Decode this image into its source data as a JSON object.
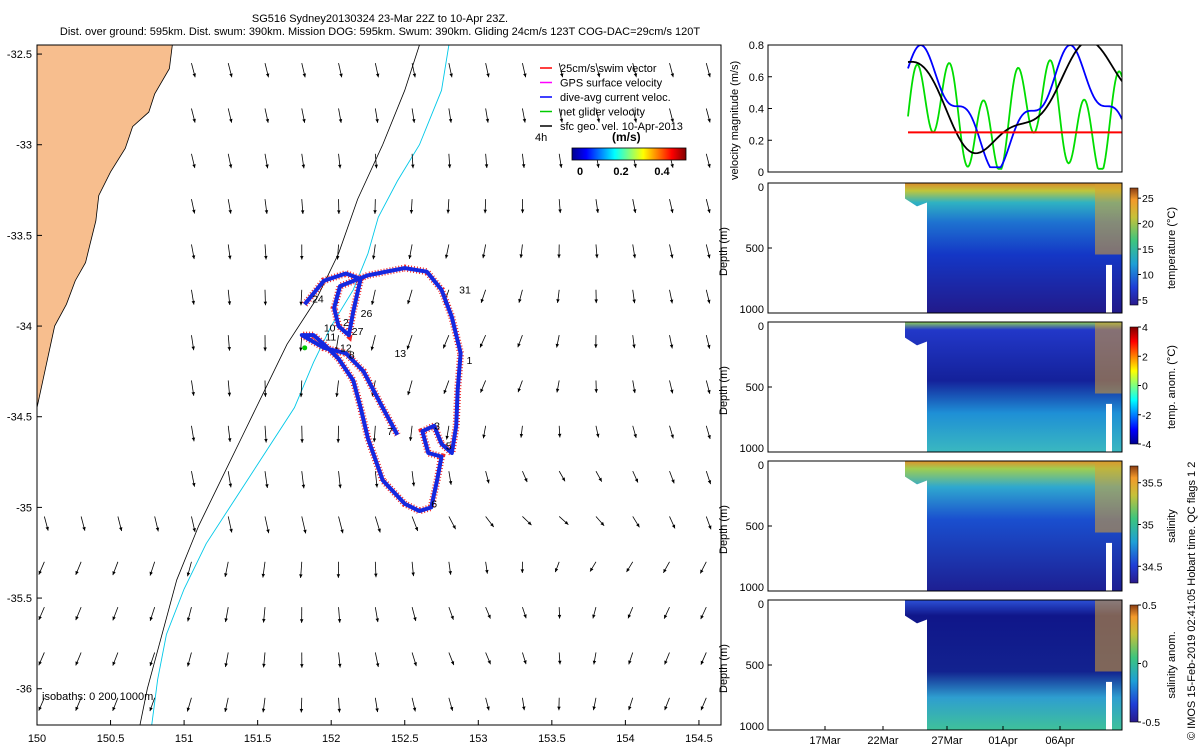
{
  "header": {
    "line1": "SG516 Sydney20130324 23-Mar 22Z to 10-Apr 23Z.",
    "line2": "Dist. over ground: 595km. Dist. swum: 390km. Mission DOG: 595km. Swum: 390km. Gliding 24cm/s 123T COG-DAC=29cm/s 120T"
  },
  "credit": "© IMOS 15-Feb-2019 02:41:05 Hobart time. QC flags 1 2",
  "chart_data": [
    {
      "type": "scatter",
      "xlim": [
        150,
        154.65
      ],
      "ylim": [
        -36.2,
        -32.45
      ],
      "x_ticks": [
        150,
        150.5,
        151,
        151.5,
        152,
        152.5,
        153,
        153.5,
        154,
        154.5
      ],
      "y_ticks": [
        -32.5,
        -33,
        -33.5,
        -34,
        -34.5,
        -35,
        -35.5,
        -36
      ],
      "land_color": "#f7be8e",
      "legend": [
        "25cm/s swim vector",
        "GPS surface velocity",
        "dive-avg current veloc.",
        "net glider velocity",
        "sfc geo. vel. 10-Apr-2013"
      ],
      "legend_colors": [
        "#ff0000",
        "#ff00ff",
        "#0000ff",
        "#00cc00",
        "#000000"
      ],
      "colorbar_label": "(m/s)",
      "colorbar_ticks": [
        "0",
        "0.2",
        "0.4"
      ],
      "time_step_label": "4h",
      "isobaths_label": "isobaths: 0   200  1000m",
      "track_labels": [
        {
          "text": "24",
          "lon": 151.87,
          "lat": -33.87
        },
        {
          "text": "31",
          "lon": 152.87,
          "lat": -33.82
        },
        {
          "text": "26",
          "lon": 152.2,
          "lat": -33.95
        },
        {
          "text": "2",
          "lon": 152.08,
          "lat": -34.0
        },
        {
          "text": "27",
          "lon": 152.14,
          "lat": -34.05
        },
        {
          "text": "10",
          "lon": 151.95,
          "lat": -34.03
        },
        {
          "text": "11",
          "lon": 151.96,
          "lat": -34.08
        },
        {
          "text": "12",
          "lon": 152.06,
          "lat": -34.14
        },
        {
          "text": "8",
          "lon": 152.12,
          "lat": -34.18
        },
        {
          "text": "13",
          "lon": 152.43,
          "lat": -34.17
        },
        {
          "text": "1",
          "lon": 152.92,
          "lat": -34.21
        },
        {
          "text": "7",
          "lon": 152.38,
          "lat": -34.6
        },
        {
          "text": "3",
          "lon": 152.7,
          "lat": -34.57
        },
        {
          "text": "5",
          "lon": 152.78,
          "lat": -34.68
        },
        {
          "text": "6",
          "lon": 152.68,
          "lat": -35.0
        }
      ]
    },
    {
      "type": "line",
      "ylabel": "velocity magnitude (m/s)",
      "ylim": [
        0,
        0.8
      ],
      "y_ticks": [
        "0",
        "0.2",
        "0.4",
        "0.6",
        "0.8"
      ],
      "series_colors": [
        "#000000",
        "#0000ff",
        "#00dd00",
        "#ff0000"
      ],
      "reference_level": 0.25
    },
    {
      "type": "heatmap",
      "ylabel": "Depth (m)",
      "y_ticks": [
        "0",
        "500",
        "1000"
      ],
      "colorbar_label": "temperature (°C)",
      "colorbar_ticks": [
        "25",
        "20",
        "15",
        "10",
        "5"
      ],
      "clim": [
        4,
        27
      ]
    },
    {
      "type": "heatmap",
      "ylabel": "Depth (m)",
      "y_ticks": [
        "0",
        "500",
        "1000"
      ],
      "colorbar_label": "temp. anom. (°C)",
      "colorbar_ticks": [
        "4",
        "2",
        "0",
        "-2",
        "-4"
      ],
      "clim": [
        -4,
        4
      ]
    },
    {
      "type": "heatmap",
      "ylabel": "Depth (m)",
      "y_ticks": [
        "0",
        "500",
        "1000"
      ],
      "colorbar_label": "salinity",
      "colorbar_ticks": [
        "35.5",
        "35",
        "34.5"
      ],
      "clim": [
        34.3,
        35.7
      ]
    },
    {
      "type": "heatmap",
      "ylabel": "Depth (m)",
      "y_ticks": [
        "0",
        "500",
        "1000"
      ],
      "colorbar_label": "salinity anom.",
      "colorbar_ticks": [
        "0.5",
        "0",
        "-0.5"
      ],
      "clim": [
        -0.5,
        0.5
      ],
      "x_ticks": [
        "17Mar",
        "22Mar",
        "27Mar",
        "01Apr",
        "06Apr"
      ]
    }
  ]
}
